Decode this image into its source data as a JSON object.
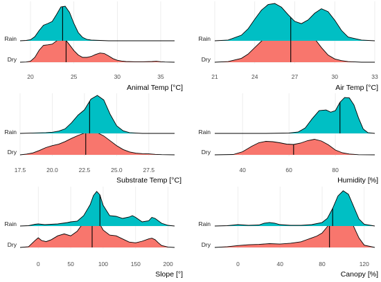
{
  "chart_data": [
    {
      "type": "ridgeline",
      "xlabel": "Animal Temp [°C]",
      "xlim": [
        18.8,
        36.6
      ],
      "ticks": [
        20,
        25,
        30,
        35
      ],
      "tick_labels": [
        "20",
        "25",
        "30",
        "35"
      ],
      "series": [
        {
          "name": "Dry",
          "color": "#F8766D",
          "median": 24.1,
          "x": [
            18.8,
            19.5,
            20.0,
            20.5,
            21.0,
            21.5,
            22.0,
            22.5,
            23.0,
            23.5,
            24.0,
            24.5,
            25.0,
            25.5,
            26.0,
            26.5,
            27.0,
            27.5,
            28.0,
            28.5,
            29.0,
            29.5,
            30.0,
            30.5,
            31.0,
            32.0,
            33.0,
            34.0,
            34.5,
            35.0,
            35.5,
            36.6
          ],
          "density": [
            0,
            0.01,
            0.04,
            0.2,
            0.5,
            0.7,
            0.72,
            0.75,
            0.88,
            1.0,
            0.95,
            0.72,
            0.48,
            0.3,
            0.2,
            0.2,
            0.24,
            0.32,
            0.38,
            0.36,
            0.26,
            0.15,
            0.08,
            0.05,
            0.03,
            0.02,
            0.02,
            0.03,
            0.04,
            0.02,
            0.01,
            0
          ]
        },
        {
          "name": "Rain",
          "color": "#00BFC4",
          "median": 23.7,
          "x": [
            18.8,
            19.5,
            20.0,
            20.5,
            21.0,
            21.5,
            22.0,
            22.5,
            23.0,
            23.5,
            24.0,
            24.5,
            25.0,
            25.5,
            26.0,
            26.5,
            27.0,
            28.0,
            29.0,
            36.6
          ],
          "density": [
            0,
            0.01,
            0.03,
            0.12,
            0.3,
            0.45,
            0.5,
            0.56,
            0.76,
            0.98,
            1.0,
            0.82,
            0.5,
            0.24,
            0.1,
            0.04,
            0.02,
            0.01,
            0,
            0
          ]
        }
      ]
    },
    {
      "type": "ridgeline",
      "xlabel": "Air Temp [°C]",
      "xlim": [
        21,
        33
      ],
      "ticks": [
        21,
        24,
        27,
        30,
        33
      ],
      "tick_labels": [
        "21",
        "24",
        "27",
        "30",
        "33"
      ],
      "series": [
        {
          "name": "Dry",
          "color": "#F8766D",
          "median": 26.7,
          "x": [
            21,
            22,
            23,
            23.5,
            24,
            24.5,
            25,
            25.5,
            26,
            26.5,
            27,
            27.5,
            28,
            28.5,
            29,
            29.5,
            30,
            30.5,
            31,
            32,
            33
          ],
          "density": [
            0,
            0.02,
            0.12,
            0.25,
            0.45,
            0.65,
            0.82,
            0.93,
            0.98,
            0.95,
            0.86,
            0.8,
            0.82,
            0.72,
            0.45,
            0.22,
            0.1,
            0.05,
            0.02,
            0,
            0
          ]
        },
        {
          "name": "Rain",
          "color": "#00BFC4",
          "median": 26.7,
          "x": [
            21,
            22,
            23,
            23.5,
            24,
            24.5,
            25,
            25.5,
            26,
            26.5,
            27,
            27.5,
            28,
            28.5,
            29,
            29.5,
            30,
            30.5,
            31,
            32,
            33
          ],
          "density": [
            0,
            0.02,
            0.15,
            0.32,
            0.58,
            0.82,
            0.97,
            1.0,
            0.9,
            0.7,
            0.52,
            0.46,
            0.56,
            0.74,
            0.86,
            0.78,
            0.55,
            0.28,
            0.1,
            0.02,
            0
          ]
        }
      ]
    },
    {
      "type": "ridgeline",
      "xlabel": "Substrate Temp [°C]",
      "xlim": [
        17.5,
        29.5
      ],
      "ticks": [
        17.5,
        20.0,
        22.5,
        25.0,
        27.5
      ],
      "tick_labels": [
        "17.5",
        "20.0",
        "22.5",
        "25.0",
        "27.5"
      ],
      "series": [
        {
          "name": "Dry",
          "color": "#F8766D",
          "median": 22.6,
          "x": [
            17.5,
            18,
            18.5,
            19,
            19.5,
            20,
            20.5,
            21,
            21.5,
            22,
            22.5,
            23,
            23.5,
            24,
            24.5,
            25,
            25.5,
            26,
            26.5,
            27,
            27.5,
            28,
            28.5,
            29.5
          ],
          "density": [
            0,
            0.03,
            0.08,
            0.18,
            0.3,
            0.38,
            0.44,
            0.55,
            0.68,
            0.8,
            0.9,
            0.98,
            0.92,
            0.78,
            0.58,
            0.38,
            0.22,
            0.12,
            0.07,
            0.05,
            0.04,
            0.02,
            0.01,
            0
          ]
        },
        {
          "name": "Rain",
          "color": "#00BFC4",
          "median": 22.9,
          "x": [
            17.5,
            18.5,
            19.5,
            20,
            20.5,
            21,
            21.5,
            22,
            22.5,
            23,
            23.5,
            24,
            24.5,
            25,
            25.5,
            26,
            27,
            29.5
          ],
          "density": [
            0,
            0.01,
            0.02,
            0.03,
            0.06,
            0.12,
            0.28,
            0.48,
            0.62,
            0.9,
            1.0,
            0.88,
            0.5,
            0.2,
            0.07,
            0.02,
            0,
            0
          ]
        }
      ]
    },
    {
      "type": "ridgeline",
      "xlabel": "Humidity [%]",
      "xlim": [
        28,
        97
      ],
      "ticks": [
        40,
        60,
        80
      ],
      "tick_labels": [
        "40",
        "60",
        "80"
      ],
      "series": [
        {
          "name": "Dry",
          "color": "#F8766D",
          "median": 62,
          "x": [
            28,
            36,
            40,
            44,
            47,
            50,
            53,
            56,
            59,
            62,
            65,
            68,
            71,
            74,
            77,
            80,
            83,
            86,
            90,
            97
          ],
          "density": [
            0,
            0.02,
            0.18,
            0.5,
            0.7,
            0.78,
            0.76,
            0.7,
            0.62,
            0.6,
            0.68,
            0.82,
            0.9,
            0.8,
            0.58,
            0.28,
            0.12,
            0.05,
            0.01,
            0
          ]
        },
        {
          "name": "Rain",
          "color": "#00BFC4",
          "median": 82,
          "x": [
            28,
            50,
            60,
            64,
            67,
            70,
            73,
            76,
            78,
            80,
            82,
            84,
            86,
            88,
            90,
            92,
            94,
            97
          ],
          "density": [
            0,
            0,
            0.01,
            0.04,
            0.15,
            0.4,
            0.62,
            0.64,
            0.58,
            0.62,
            0.85,
            0.98,
            0.97,
            0.78,
            0.42,
            0.12,
            0.02,
            0
          ]
        }
      ]
    },
    {
      "type": "ridgeline",
      "xlabel": "Slope [°]",
      "xlim": [
        -28,
        210
      ],
      "ticks": [
        0,
        50,
        100,
        150,
        200
      ],
      "tick_labels": [
        "0",
        "50",
        "100",
        "150",
        "200"
      ],
      "series": [
        {
          "name": "Dry",
          "color": "#F8766D",
          "median": 83,
          "x": [
            -28,
            -15,
            -5,
            0,
            5,
            12,
            20,
            30,
            40,
            50,
            60,
            70,
            75,
            80,
            85,
            90,
            95,
            100,
            110,
            120,
            130,
            140,
            150,
            160,
            170,
            175,
            180,
            185,
            190,
            200,
            210
          ],
          "density": [
            0,
            0.02,
            0.18,
            0.25,
            0.18,
            0.15,
            0.2,
            0.3,
            0.35,
            0.3,
            0.42,
            0.65,
            0.82,
            0.98,
            1.0,
            0.85,
            0.6,
            0.45,
            0.32,
            0.3,
            0.22,
            0.14,
            0.12,
            0.16,
            0.22,
            0.24,
            0.2,
            0.12,
            0.05,
            0.01,
            0
          ]
        },
        {
          "name": "Rain",
          "color": "#00BFC4",
          "median": 95,
          "x": [
            -28,
            -15,
            -5,
            0,
            10,
            20,
            30,
            45,
            50,
            60,
            70,
            80,
            85,
            90,
            95,
            100,
            110,
            120,
            130,
            140,
            145,
            150,
            160,
            170,
            175,
            180,
            190,
            200,
            210
          ],
          "density": [
            0,
            0.01,
            0.05,
            0.06,
            0.04,
            0.05,
            0.06,
            0.1,
            0.12,
            0.14,
            0.3,
            0.62,
            0.88,
            1.0,
            0.9,
            0.6,
            0.3,
            0.28,
            0.22,
            0.26,
            0.3,
            0.25,
            0.12,
            0.15,
            0.25,
            0.22,
            0.08,
            0.02,
            0
          ]
        }
      ]
    },
    {
      "type": "ridgeline",
      "xlabel": "Canopy [%]",
      "xlim": [
        -22,
        130
      ],
      "ticks": [
        0,
        40,
        80,
        120
      ],
      "tick_labels": [
        "0",
        "40",
        "80",
        "120"
      ],
      "series": [
        {
          "name": "Dry",
          "color": "#F8766D",
          "median": 87,
          "x": [
            -22,
            -10,
            0,
            10,
            20,
            30,
            40,
            50,
            60,
            65,
            70,
            75,
            80,
            85,
            90,
            95,
            100,
            105,
            110,
            115,
            120,
            130
          ],
          "density": [
            0,
            0.02,
            0.05,
            0.07,
            0.08,
            0.1,
            0.09,
            0.11,
            0.15,
            0.2,
            0.25,
            0.3,
            0.38,
            0.55,
            0.78,
            0.95,
            1.0,
            0.85,
            0.55,
            0.25,
            0.06,
            0
          ]
        },
        {
          "name": "Rain",
          "color": "#00BFC4",
          "median": 90,
          "x": [
            -22,
            -10,
            0,
            10,
            20,
            25,
            30,
            35,
            40,
            50,
            60,
            70,
            80,
            85,
            90,
            95,
            100,
            105,
            110,
            115,
            120,
            130
          ],
          "density": [
            0,
            0.01,
            0.04,
            0.02,
            0.03,
            0.08,
            0.1,
            0.08,
            0.04,
            0.02,
            0.02,
            0.04,
            0.1,
            0.22,
            0.5,
            0.85,
            1.0,
            0.9,
            0.55,
            0.2,
            0.05,
            0
          ]
        }
      ]
    }
  ]
}
